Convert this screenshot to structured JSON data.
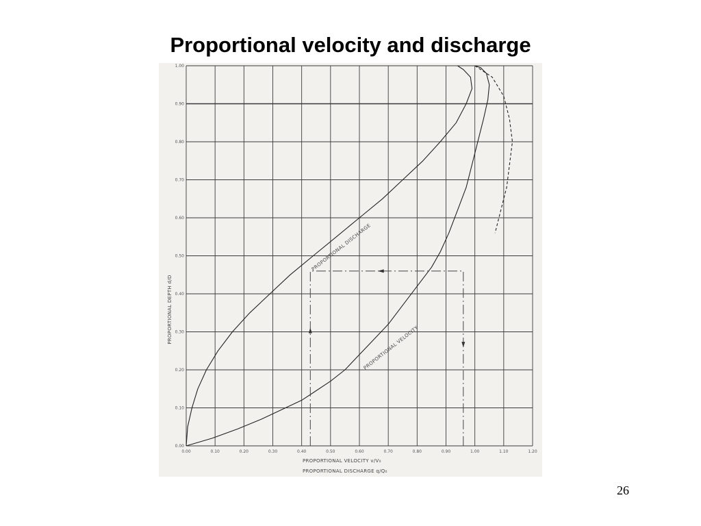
{
  "slide": {
    "title": "Proportional velocity and discharge",
    "page_number": "26"
  },
  "chart_data": {
    "type": "line",
    "title": "",
    "xlabel_lines": [
      "PROPORTIONAL VELOCITY v/V₀",
      "PROPORTIONAL DISCHARGE q/Q₀"
    ],
    "ylabel": "PROPORTIONAL DEPTH d/D",
    "xlim": [
      0,
      1.2
    ],
    "ylim": [
      0,
      1.0
    ],
    "x_ticks": [
      "0.00",
      "0.10",
      "0.20",
      "0.30",
      "0.40",
      "0.50",
      "0.60",
      "0.70",
      "0.80",
      "0.90",
      "1.00",
      "1.10",
      "1.20"
    ],
    "y_ticks": [
      "0.00",
      "0.10",
      "0.20",
      "0.30",
      "0.40",
      "0.50",
      "0.60",
      "0.70",
      "0.80",
      "0.90",
      "1.00"
    ],
    "grid": true,
    "legend": "none",
    "series": [
      {
        "name": "PROPORTIONAL DISCHARGE",
        "style": "solid",
        "points": [
          [
            0,
            0
          ],
          [
            0.005,
            0.05
          ],
          [
            0.02,
            0.1
          ],
          [
            0.04,
            0.15
          ],
          [
            0.07,
            0.2
          ],
          [
            0.11,
            0.25
          ],
          [
            0.16,
            0.3
          ],
          [
            0.22,
            0.35
          ],
          [
            0.29,
            0.4
          ],
          [
            0.36,
            0.45
          ],
          [
            0.44,
            0.5
          ],
          [
            0.52,
            0.55
          ],
          [
            0.6,
            0.6
          ],
          [
            0.68,
            0.65
          ],
          [
            0.75,
            0.7
          ],
          [
            0.82,
            0.75
          ],
          [
            0.88,
            0.8
          ],
          [
            0.935,
            0.85
          ],
          [
            0.97,
            0.9
          ],
          [
            0.99,
            0.94
          ],
          [
            0.985,
            0.97
          ],
          [
            0.96,
            0.99
          ],
          [
            0.94,
            1.0
          ]
        ]
      },
      {
        "name": "PROPORTIONAL VELOCITY",
        "style": "solid",
        "points": [
          [
            0,
            0
          ],
          [
            0.09,
            0.02
          ],
          [
            0.18,
            0.045
          ],
          [
            0.26,
            0.07
          ],
          [
            0.33,
            0.095
          ],
          [
            0.4,
            0.12
          ],
          [
            0.45,
            0.145
          ],
          [
            0.5,
            0.17
          ],
          [
            0.55,
            0.2
          ],
          [
            0.6,
            0.24
          ],
          [
            0.65,
            0.28
          ],
          [
            0.7,
            0.32
          ],
          [
            0.75,
            0.37
          ],
          [
            0.8,
            0.42
          ],
          [
            0.85,
            0.47
          ],
          [
            0.88,
            0.51
          ],
          [
            0.91,
            0.56
          ],
          [
            0.94,
            0.62
          ],
          [
            0.97,
            0.68
          ],
          [
            0.99,
            0.74
          ],
          [
            1.01,
            0.8
          ],
          [
            1.03,
            0.86
          ],
          [
            1.045,
            0.91
          ],
          [
            1.05,
            0.95
          ],
          [
            1.04,
            0.98
          ],
          [
            1.02,
            0.995
          ],
          [
            1.0,
            1.0
          ]
        ]
      },
      {
        "name": "",
        "style": "dashed",
        "points": [
          [
            1.0,
            1.0
          ],
          [
            1.06,
            0.97
          ],
          [
            1.1,
            0.92
          ],
          [
            1.12,
            0.86
          ],
          [
            1.13,
            0.8
          ],
          [
            1.12,
            0.74
          ],
          [
            1.11,
            0.68
          ],
          [
            1.09,
            0.62
          ],
          [
            1.07,
            0.56
          ]
        ]
      }
    ],
    "annotation_path": {
      "style": "dash-dot",
      "points": [
        [
          0.43,
          0.0
        ],
        [
          0.43,
          0.46
        ],
        [
          0.96,
          0.46
        ],
        [
          0.96,
          0.0
        ]
      ],
      "arrows": [
        [
          0.43,
          0.3,
          "up"
        ],
        [
          0.68,
          0.46,
          "left"
        ],
        [
          0.96,
          0.27,
          "down"
        ]
      ]
    },
    "curve_labels": [
      {
        "text": "PROPORTIONAL DISCHARGE",
        "at": [
          0.44,
          0.46
        ],
        "angle": -38
      },
      {
        "text": "PROPORTIONAL VELOCITY",
        "at": [
          0.62,
          0.2
        ],
        "angle": -38
      }
    ]
  }
}
